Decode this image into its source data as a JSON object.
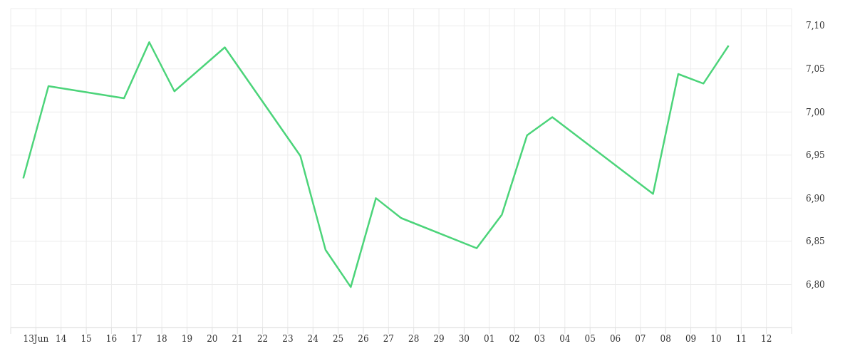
{
  "chart_data": {
    "type": "line",
    "x": [
      "--06-12T12:00",
      "--06-13T12:00",
      "--06-16T12:00",
      "--06-17T12:00",
      "--06-18T12:00",
      "--06-20T12:00",
      "--06-23T12:00",
      "--06-24T12:00",
      "--06-25T12:00",
      "--06-26T12:00",
      "--06-27T12:00",
      "--06-30T12:00",
      "--07-01T12:00",
      "--07-02T12:00",
      "--07-03T12:00",
      "--07-07T12:00",
      "--07-08T12:00",
      "--07-09T12:00",
      "--07-10T12:00"
    ],
    "series": [
      {
        "color": "#4cd47a",
        "values": [
          6.923,
          7.03,
          7.016,
          7.081,
          7.024,
          7.075,
          6.949,
          6.84,
          6.797,
          6.9,
          6.877,
          6.842,
          6.881,
          6.973,
          6.994,
          6.905,
          7.044,
          7.033,
          7.077
        ]
      }
    ],
    "xlim": [
      "--06-12",
      "--07-13"
    ],
    "xticks": [
      {
        "value": "--06-12",
        "label": null
      },
      {
        "value": "--06-13",
        "label": "13Jun"
      },
      {
        "value": "--06-14",
        "label": "14"
      },
      {
        "value": "--06-15",
        "label": "15"
      },
      {
        "value": "--06-16",
        "label": "16"
      },
      {
        "value": "--06-17",
        "label": "17"
      },
      {
        "value": "--06-18",
        "label": "18"
      },
      {
        "value": "--06-19",
        "label": "19"
      },
      {
        "value": "--06-20",
        "label": "20"
      },
      {
        "value": "--06-21",
        "label": "21"
      },
      {
        "value": "--06-22",
        "label": "22"
      },
      {
        "value": "--06-23",
        "label": "23"
      },
      {
        "value": "--06-24",
        "label": "24"
      },
      {
        "value": "--06-25",
        "label": "25"
      },
      {
        "value": "--06-26",
        "label": "26"
      },
      {
        "value": "--06-27",
        "label": "27"
      },
      {
        "value": "--06-28",
        "label": "28"
      },
      {
        "value": "--06-29",
        "label": "29"
      },
      {
        "value": "--06-30",
        "label": "30"
      },
      {
        "value": "--07-01",
        "label": "01"
      },
      {
        "value": "--07-02",
        "label": "02"
      },
      {
        "value": "--07-03",
        "label": "03"
      },
      {
        "value": "--07-04",
        "label": "04"
      },
      {
        "value": "--07-05",
        "label": "05"
      },
      {
        "value": "--07-06",
        "label": "06"
      },
      {
        "value": "--07-07",
        "label": "07"
      },
      {
        "value": "--07-08",
        "label": "08"
      },
      {
        "value": "--07-09",
        "label": "09"
      },
      {
        "value": "--07-10",
        "label": "10"
      },
      {
        "value": "--07-11",
        "label": "11"
      },
      {
        "value": "--07-12",
        "label": "12"
      },
      {
        "value": "--07-13",
        "label": null
      }
    ],
    "ylim": [
      6.75,
      7.12
    ],
    "yticks": [
      {
        "value": 6.75,
        "label": null
      },
      {
        "value": 6.8,
        "label": "6,80"
      },
      {
        "value": 6.85,
        "label": "6,85"
      },
      {
        "value": 6.9,
        "label": "6,90"
      },
      {
        "value": 6.95,
        "label": "6,95"
      },
      {
        "value": 7.0,
        "label": "7,00"
      },
      {
        "value": 7.05,
        "label": "7,05"
      },
      {
        "value": 7.1,
        "label": "7,10"
      }
    ],
    "grid": true,
    "legend": false,
    "marker": "none",
    "line_style": "solid"
  }
}
